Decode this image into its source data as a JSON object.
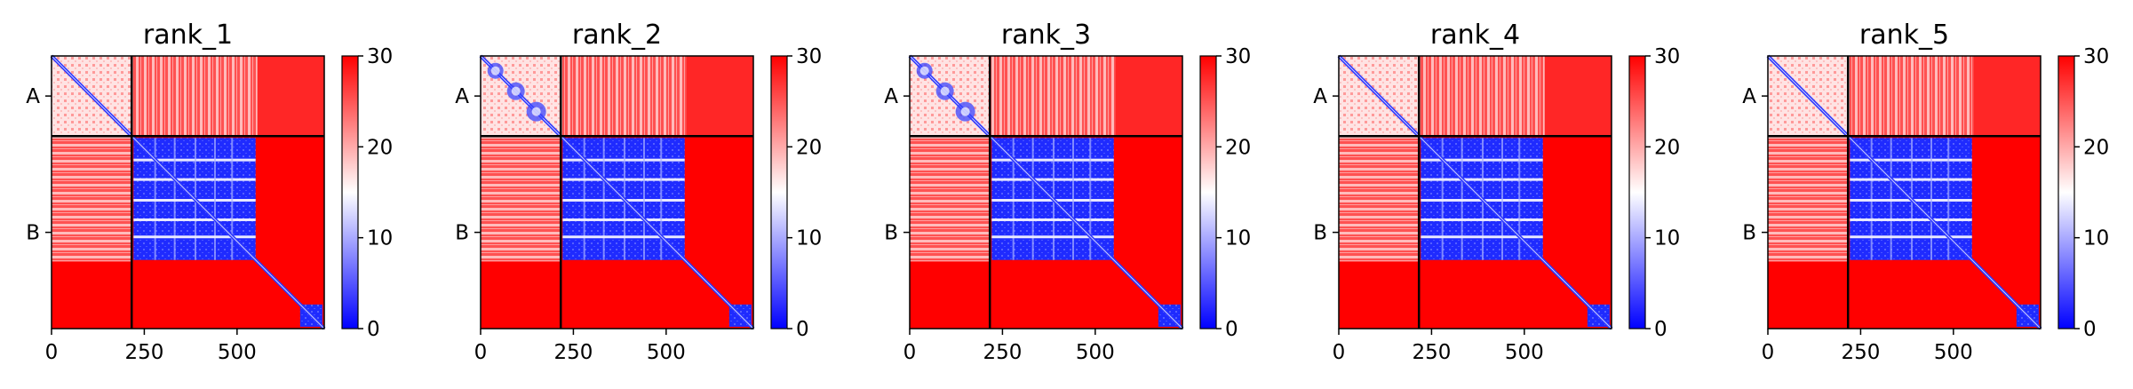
{
  "chart_data": [
    {
      "type": "heatmap",
      "title": "rank_1",
      "variant": 0,
      "chains": [
        {
          "label": "A",
          "start": 0,
          "end": 216
        },
        {
          "label": "B",
          "start": 216,
          "end": 735
        }
      ],
      "xticks": [
        0,
        250,
        500
      ],
      "xlim": [
        0,
        735
      ],
      "colorbar": {
        "min": 0,
        "max": 30,
        "ticks": [
          0,
          10,
          20,
          30
        ],
        "colormap": "bwr"
      }
    },
    {
      "type": "heatmap",
      "title": "rank_2",
      "variant": 1,
      "chains": [
        {
          "label": "A",
          "start": 0,
          "end": 216
        },
        {
          "label": "B",
          "start": 216,
          "end": 735
        }
      ],
      "xticks": [
        0,
        250,
        500
      ],
      "xlim": [
        0,
        735
      ],
      "colorbar": {
        "min": 0,
        "max": 30,
        "ticks": [
          0,
          10,
          20,
          30
        ],
        "colormap": "bwr"
      }
    },
    {
      "type": "heatmap",
      "title": "rank_3",
      "variant": 2,
      "chains": [
        {
          "label": "A",
          "start": 0,
          "end": 216
        },
        {
          "label": "B",
          "start": 216,
          "end": 735
        }
      ],
      "xticks": [
        0,
        250,
        500
      ],
      "xlim": [
        0,
        735
      ],
      "colorbar": {
        "min": 0,
        "max": 30,
        "ticks": [
          0,
          10,
          20,
          30
        ],
        "colormap": "bwr"
      }
    },
    {
      "type": "heatmap",
      "title": "rank_4",
      "variant": 3,
      "chains": [
        {
          "label": "A",
          "start": 0,
          "end": 216
        },
        {
          "label": "B",
          "start": 216,
          "end": 735
        }
      ],
      "xticks": [
        0,
        250,
        500
      ],
      "xlim": [
        0,
        735
      ],
      "colorbar": {
        "min": 0,
        "max": 30,
        "ticks": [
          0,
          10,
          20,
          30
        ],
        "colormap": "bwr"
      }
    },
    {
      "type": "heatmap",
      "title": "rank_5",
      "variant": 4,
      "chains": [
        {
          "label": "A",
          "start": 0,
          "end": 216
        },
        {
          "label": "B",
          "start": 216,
          "end": 735
        }
      ],
      "xticks": [
        0,
        250,
        500
      ],
      "xlim": [
        0,
        735
      ],
      "colorbar": {
        "min": 0,
        "max": 30,
        "ticks": [
          0,
          10,
          20,
          30
        ],
        "colormap": "bwr"
      }
    }
  ],
  "colors": {
    "high": "#ff0000",
    "mid": "#ffffff",
    "low": "#0000ff",
    "axis": "#000000"
  }
}
